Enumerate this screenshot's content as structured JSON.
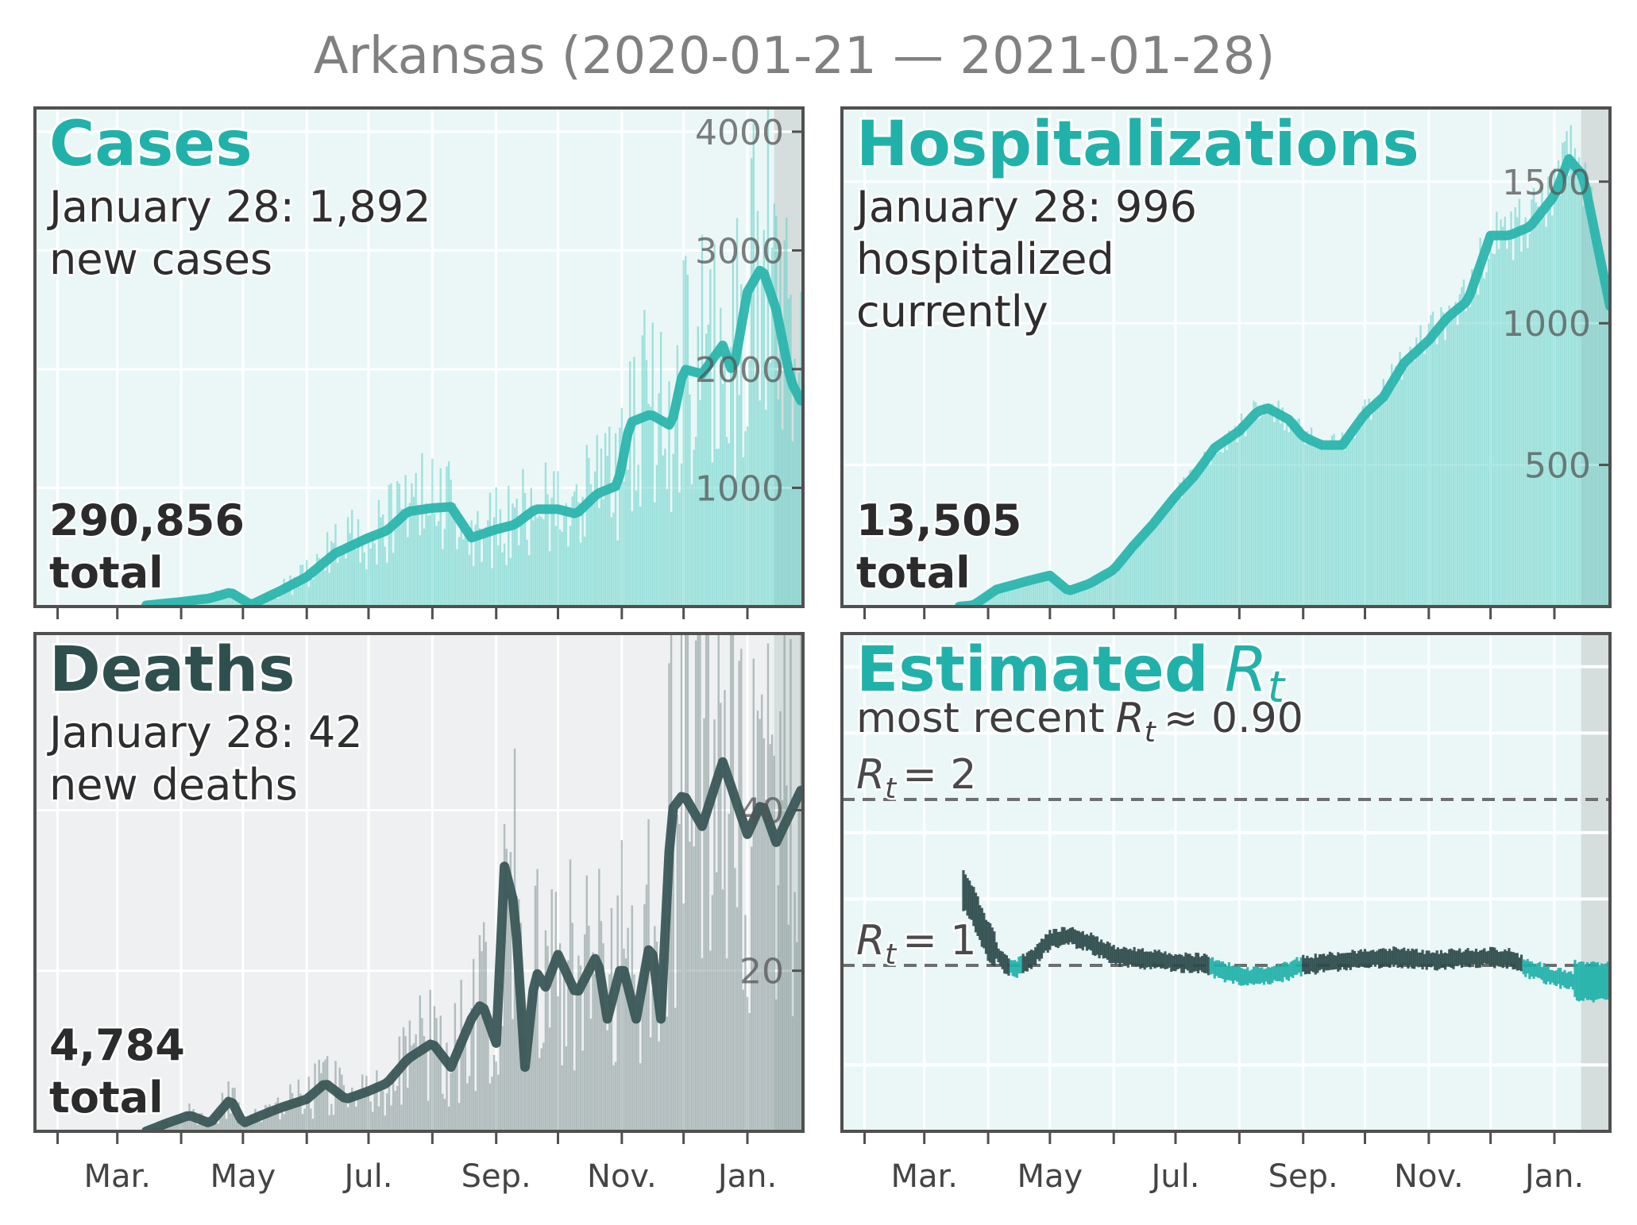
{
  "figure": {
    "title": "Arkansas (2020-01-21 — 2021-01-28)",
    "month_labels": [
      "Mar.",
      "May",
      "Jul.",
      "Sep.",
      "Nov.",
      "Jan."
    ],
    "colors": {
      "teal": "#20b2aa",
      "dark": "#2f4f4f",
      "panel_bg_light": "#ebf7f7",
      "panel_bg_gray": "#eef0f1",
      "recent_shade": "#d5dddd",
      "frame": "#505050"
    }
  },
  "chart_data": [
    {
      "id": "cases",
      "type": "bar+line",
      "title": "Cases",
      "subtitle_line1": "January 28: 1,892",
      "subtitle_line2": "new cases",
      "total_line1": "290,856",
      "total_line2": "total",
      "ylim": [
        0,
        4200
      ],
      "yticks": [
        1000,
        2000,
        3000,
        4000
      ],
      "ytick_labels": [
        "1000",
        "2000",
        "3000",
        "4000"
      ],
      "x_range": [
        "2020-01-21",
        "2021-01-28"
      ],
      "moving_average": {
        "x": [
          "2020-03-15",
          "2020-04-01",
          "2020-04-15",
          "2020-04-25",
          "2020-05-05",
          "2020-05-20",
          "2020-06-01",
          "2020-06-15",
          "2020-07-01",
          "2020-07-10",
          "2020-07-20",
          "2020-08-01",
          "2020-08-10",
          "2020-08-20",
          "2020-09-01",
          "2020-09-10",
          "2020-09-20",
          "2020-10-01",
          "2020-10-10",
          "2020-10-20",
          "2020-10-30",
          "2020-11-05",
          "2020-11-15",
          "2020-11-25",
          "2020-12-01",
          "2020-12-10",
          "2020-12-20",
          "2020-12-25",
          "2021-01-01",
          "2021-01-08",
          "2021-01-15",
          "2021-01-22",
          "2021-01-28"
        ],
        "y": [
          10,
          40,
          70,
          120,
          15,
          140,
          250,
          450,
          580,
          640,
          800,
          830,
          840,
          580,
          650,
          690,
          820,
          820,
          780,
          950,
          1020,
          1550,
          1620,
          1520,
          2000,
          1960,
          2200,
          1960,
          2650,
          2860,
          2500,
          1900,
          1700
        ]
      }
    },
    {
      "id": "hospitalizations",
      "type": "bar+line",
      "title": "Hospitalizations",
      "subtitle_line1": "January 28: 996",
      "subtitle_line2": "hospitalized",
      "subtitle_line3": "currently",
      "total_line1": "13,505",
      "total_line2": "total",
      "ylim": [
        0,
        1760
      ],
      "yticks": [
        500,
        1000,
        1500
      ],
      "ytick_labels": [
        "500",
        "1000",
        "1500"
      ],
      "x_range": [
        "2020-01-21",
        "2021-01-28"
      ],
      "moving_average": {
        "x": [
          "2020-03-18",
          "2020-03-25",
          "2020-04-05",
          "2020-04-20",
          "2020-05-01",
          "2020-05-10",
          "2020-05-20",
          "2020-06-01",
          "2020-06-10",
          "2020-06-20",
          "2020-07-01",
          "2020-07-10",
          "2020-07-20",
          "2020-08-01",
          "2020-08-10",
          "2020-08-15",
          "2020-08-25",
          "2020-09-01",
          "2020-09-10",
          "2020-09-20",
          "2020-10-01",
          "2020-10-10",
          "2020-10-20",
          "2020-11-01",
          "2020-11-10",
          "2020-11-20",
          "2020-12-01",
          "2020-12-10",
          "2020-12-20",
          "2021-01-01",
          "2021-01-08",
          "2021-01-15",
          "2021-01-28"
        ],
        "y": [
          0,
          5,
          60,
          90,
          110,
          55,
          80,
          130,
          210,
          290,
          390,
          460,
          560,
          620,
          690,
          700,
          660,
          600,
          570,
          570,
          680,
          740,
          860,
          940,
          1020,
          1080,
          1310,
          1310,
          1340,
          1450,
          1580,
          1520,
          1060
        ]
      }
    },
    {
      "id": "deaths",
      "type": "bar+line",
      "title": "Deaths",
      "subtitle_line1": "January 28: 42",
      "subtitle_line2": "new deaths",
      "total_line1": "4,784",
      "total_line2": "total",
      "ylim": [
        0,
        62
      ],
      "yticks": [
        20,
        40
      ],
      "ytick_labels": [
        "20",
        "40"
      ],
      "x_range": [
        "2020-01-21",
        "2021-01-28"
      ],
      "moving_average": {
        "x": [
          "2020-03-15",
          "2020-03-25",
          "2020-04-05",
          "2020-04-15",
          "2020-04-25",
          "2020-05-01",
          "2020-05-10",
          "2020-05-20",
          "2020-06-01",
          "2020-06-10",
          "2020-06-20",
          "2020-07-01",
          "2020-07-10",
          "2020-07-20",
          "2020-08-01",
          "2020-08-10",
          "2020-08-20",
          "2020-08-25",
          "2020-09-01",
          "2020-09-05",
          "2020-09-10",
          "2020-09-15",
          "2020-09-20",
          "2020-09-25",
          "2020-10-01",
          "2020-10-10",
          "2020-10-20",
          "2020-10-25",
          "2020-11-01",
          "2020-11-08",
          "2020-11-15",
          "2020-11-20",
          "2020-11-25",
          "2020-12-01",
          "2020-12-10",
          "2020-12-20",
          "2021-01-01",
          "2021-01-08",
          "2021-01-15",
          "2021-01-28"
        ],
        "y": [
          0,
          1,
          2,
          1,
          4,
          1,
          2,
          3,
          4,
          6,
          4,
          5,
          6,
          9,
          11,
          8,
          14,
          16,
          11,
          33,
          28,
          8,
          20,
          18,
          22,
          17,
          22,
          14,
          21,
          14,
          24,
          14,
          40,
          42,
          38,
          46,
          37,
          41,
          36,
          43
        ]
      }
    },
    {
      "id": "rt",
      "type": "line",
      "title": "Estimated",
      "title_symbol": "R",
      "title_subscript": "t",
      "subtitle_prefix": "most recent",
      "subtitle_symbol": "R",
      "subtitle_subscript": "t",
      "subtitle_suffix": "≈ 0.90",
      "ylim": [
        0,
        3
      ],
      "reference_lines": [
        {
          "value": 2,
          "label_symbol": "R",
          "label_subscript": "t",
          "label_suffix": "= 2"
        },
        {
          "value": 1,
          "label_symbol": "R",
          "label_subscript": "t",
          "label_suffix": "= 1"
        }
      ],
      "x_range": [
        "2020-01-21",
        "2021-01-28"
      ],
      "estimate": {
        "x": [
          "2020-03-20",
          "2020-03-25",
          "2020-04-01",
          "2020-04-08",
          "2020-04-15",
          "2020-04-22",
          "2020-05-01",
          "2020-05-10",
          "2020-05-20",
          "2020-06-01",
          "2020-06-15",
          "2020-07-01",
          "2020-07-15",
          "2020-07-25",
          "2020-08-05",
          "2020-08-15",
          "2020-08-25",
          "2020-09-01",
          "2020-09-15",
          "2020-10-01",
          "2020-10-15",
          "2020-11-01",
          "2020-11-15",
          "2020-12-01",
          "2020-12-10",
          "2020-12-20",
          "2021-01-01",
          "2021-01-10",
          "2021-01-20",
          "2021-01-28"
        ],
        "y": [
          1.45,
          1.35,
          1.15,
          1.02,
          0.98,
          1.04,
          1.15,
          1.18,
          1.14,
          1.06,
          1.04,
          1.02,
          1.01,
          0.96,
          0.93,
          0.94,
          0.97,
          1.0,
          1.02,
          1.04,
          1.05,
          1.03,
          1.04,
          1.05,
          1.04,
          0.98,
          0.93,
          0.91,
          0.9,
          0.9
        ]
      }
    }
  ]
}
